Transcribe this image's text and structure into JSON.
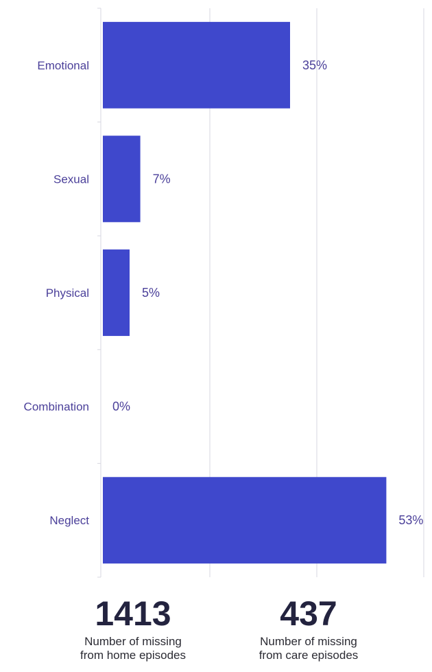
{
  "chart_data": {
    "type": "bar",
    "orientation": "horizontal",
    "categories": [
      "Emotional",
      "Sexual",
      "Physical",
      "Combination",
      "Neglect"
    ],
    "values": [
      35,
      7,
      5,
      0,
      53
    ],
    "value_labels": [
      "35%",
      "7%",
      "5%",
      "0%",
      "53%"
    ],
    "xlim": [
      0,
      60
    ],
    "grid": true,
    "colors": {
      "bar": "#3f48cc",
      "category_label": "#4a3f99",
      "value_label": "#4a3f99",
      "grid": "#d7d7e0"
    }
  },
  "stats": [
    {
      "value": "1413",
      "label": "Number of missing\nfrom home episodes"
    },
    {
      "value": "437",
      "label": "Number of missing\nfrom care episodes"
    }
  ]
}
